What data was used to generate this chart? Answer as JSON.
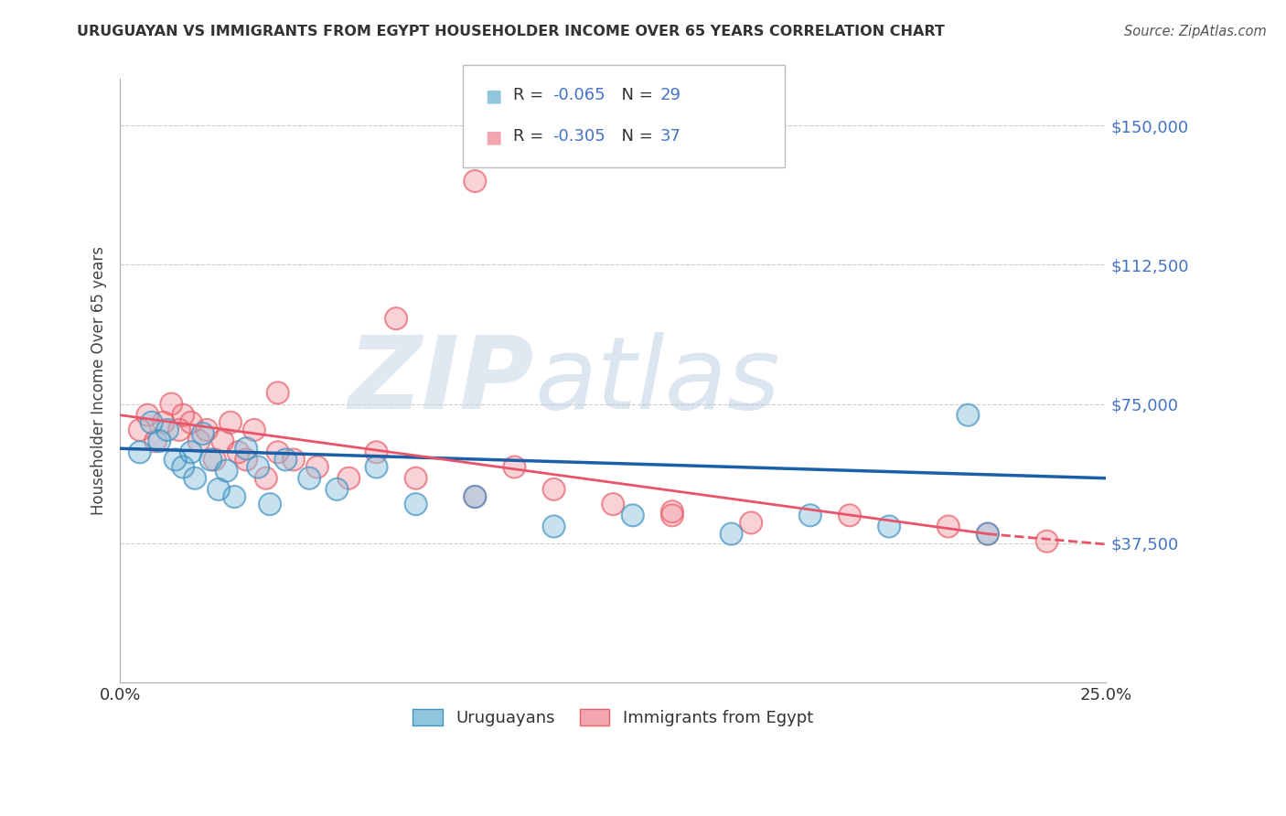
{
  "title": "URUGUAYAN VS IMMIGRANTS FROM EGYPT HOUSEHOLDER INCOME OVER 65 YEARS CORRELATION CHART",
  "source": "Source: ZipAtlas.com",
  "ylabel": "Householder Income Over 65 years",
  "watermark_zip": "ZIP",
  "watermark_atlas": "atlas",
  "xlim": [
    0.0,
    0.25
  ],
  "ylim": [
    0,
    162500
  ],
  "xticks": [
    0.0,
    0.05,
    0.1,
    0.15,
    0.2,
    0.25
  ],
  "xticklabels": [
    "0.0%",
    "",
    "",
    "",
    "",
    "25.0%"
  ],
  "yticks": [
    0,
    37500,
    75000,
    112500,
    150000
  ],
  "yticklabels": [
    "",
    "$37,500",
    "$75,000",
    "$112,500",
    "$150,000"
  ],
  "legend_bottom_label1": "Uruguayans",
  "legend_bottom_label2": "Immigrants from Egypt",
  "uruguayan_color": "#92c5de",
  "egypt_color": "#f4a6b0",
  "uruguayan_edge_color": "#4393c3",
  "egypt_edge_color": "#e8606a",
  "uruguayan_line_color": "#1a5fa8",
  "egypt_line_color": "#e8546a",
  "background_color": "#ffffff",
  "grid_color": "#cccccc",
  "title_color": "#333333",
  "source_color": "#555555",
  "ytick_color": "#4472c4",
  "R_color": "#4472c4",
  "uruguayan_x": [
    0.005,
    0.008,
    0.01,
    0.012,
    0.014,
    0.016,
    0.018,
    0.019,
    0.021,
    0.023,
    0.025,
    0.027,
    0.029,
    0.032,
    0.035,
    0.038,
    0.042,
    0.048,
    0.055,
    0.065,
    0.075,
    0.09,
    0.11,
    0.13,
    0.155,
    0.175,
    0.195,
    0.215,
    0.22
  ],
  "uruguayan_y": [
    62000,
    70000,
    65000,
    68000,
    60000,
    58000,
    62000,
    55000,
    67000,
    60000,
    52000,
    57000,
    50000,
    63000,
    58000,
    48000,
    60000,
    55000,
    52000,
    58000,
    48000,
    50000,
    42000,
    45000,
    40000,
    45000,
    42000,
    72000,
    40000
  ],
  "egypt_x": [
    0.005,
    0.007,
    0.009,
    0.011,
    0.013,
    0.015,
    0.016,
    0.018,
    0.02,
    0.022,
    0.024,
    0.026,
    0.028,
    0.03,
    0.032,
    0.034,
    0.037,
    0.04,
    0.044,
    0.05,
    0.058,
    0.065,
    0.075,
    0.09,
    0.1,
    0.11,
    0.125,
    0.14,
    0.16,
    0.185,
    0.21,
    0.22,
    0.235,
    0.14,
    0.09,
    0.07,
    0.04
  ],
  "egypt_y": [
    68000,
    72000,
    65000,
    70000,
    75000,
    68000,
    72000,
    70000,
    65000,
    68000,
    60000,
    65000,
    70000,
    62000,
    60000,
    68000,
    55000,
    62000,
    60000,
    58000,
    55000,
    62000,
    55000,
    50000,
    58000,
    52000,
    48000,
    45000,
    43000,
    45000,
    42000,
    40000,
    38000,
    46000,
    135000,
    98000,
    78000
  ]
}
